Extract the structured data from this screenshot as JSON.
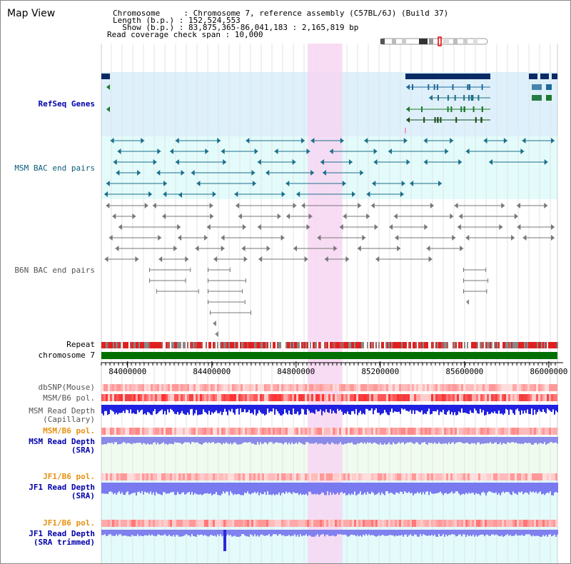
{
  "header": {
    "title": "Map View",
    "lines": [
      "Chromosome     : Chromosome 7, reference assembly (C57BL/6J) (Build 37)",
      "Length (b.p.) : 152,524,553",
      "  Show (b.p.) : 83,875,365-86,041,183 : 2,165,819 bp",
      "Read coverage check span : 10,000"
    ]
  },
  "tracks": {
    "refseq": "RefSeq Genes",
    "msm_bac": "MSM BAC end pairs",
    "b6n_bac": "B6N BAC end pairs",
    "repeat": "Repeat",
    "chromosome": "chromosome 7",
    "dbsnp": "dbSNP(Mouse)",
    "msm_b6_pol_1": "MSM/B6 pol.",
    "msm_depth_cap_1": "MSM Read Depth",
    "msm_depth_cap_2": "(Capillary)",
    "msm_b6_pol_2": "MSM/B6 pol.",
    "msm_depth_sra_1": "MSM Read Depth",
    "msm_depth_sra_2": "(SRA)",
    "jf1_b6_pol_1": "JF1/B6 pol.",
    "jf1_depth_sra_1": "JF1 Read Depth",
    "jf1_depth_sra_2": "(SRA)",
    "jf1_b6_pol_2": "JF1/B6 pol.",
    "jf1_depth_trim_1": "JF1 Read Depth",
    "jf1_depth_trim_2": "(SRA trimmed)"
  },
  "axis": {
    "range": [
      83875365,
      86041183
    ],
    "ticks": [
      "84000000",
      "84400000",
      "84800000",
      "85200000",
      "85600000",
      "86000000"
    ],
    "tick_values": [
      84000000,
      84400000,
      84800000,
      85200000,
      85600000,
      86000000
    ]
  },
  "highlight_region": [
    84855000,
    85020000
  ],
  "colors": {
    "refseq_bg": "#ddf0fb",
    "msm_bg": "#e3fbfb",
    "highlight": "#f7d6f2",
    "chromosome_bar": "#007000",
    "blue_label": "#0000aa",
    "orange_label": "#e8900f",
    "depth_blue": "#1e1ee6",
    "pol_red": "#f24040"
  }
}
